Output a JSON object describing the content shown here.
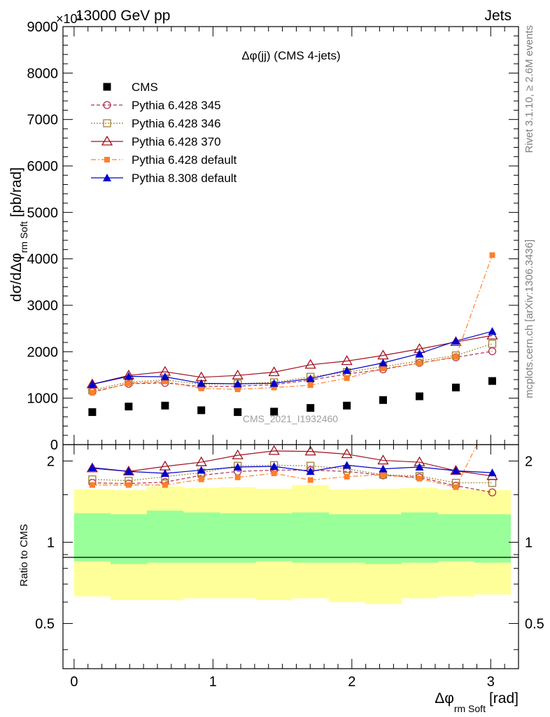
{
  "header": {
    "left": "13000 GeV pp",
    "right": "Jets",
    "exponent": "×10³"
  },
  "side_labels": {
    "rivet": "Rivet 3.1.10, ≥ 2.6M events",
    "mcplots": "mcplots.cern.ch [arXiv:1306.3436]"
  },
  "watermark": "CMS_2021_I1932460",
  "chart_data": {
    "type": "scatter",
    "title": "Δφ(jj) (CMS 4-jets)",
    "ylabel": "dσ/dΔφrm Soft [pb/rad]",
    "ylabel_main": "dσ/dΔφ",
    "ylabel_sub": "rm Soft",
    "ylabel_unit": "[pb/rad]",
    "xlabel": "Δφrm Soft [rad]",
    "xlabel_main": "Δφ",
    "xlabel_sub": "rm Soft",
    "xlabel_unit": "[rad]",
    "xlim": [
      -0.08,
      3.2
    ],
    "ylim": [
      0,
      9000
    ],
    "y_ticks": [
      0,
      1000,
      2000,
      3000,
      4000,
      5000,
      6000,
      7000,
      8000,
      9000
    ],
    "y_tick_labels": [
      "0",
      "1000",
      "2000",
      "3000",
      "4000",
      "5000",
      "6000",
      "7000",
      "8000",
      "9000"
    ],
    "x_ticks": [
      0,
      1,
      2,
      3
    ],
    "x_tick_labels": [
      "0",
      "1",
      "2",
      "3"
    ],
    "legend_position": "top-left",
    "x": [
      0.131,
      0.393,
      0.655,
      0.916,
      1.178,
      1.44,
      1.702,
      1.964,
      2.225,
      2.487,
      2.749,
      3.011
    ],
    "bin_edges": [
      0.0,
      0.262,
      0.524,
      0.785,
      1.047,
      1.309,
      1.571,
      1.833,
      2.094,
      2.356,
      2.618,
      2.88,
      3.142
    ],
    "series": [
      {
        "name": "CMS",
        "color": "#000000",
        "marker": "square",
        "values": [
          700,
          820,
          840,
          740,
          700,
          710,
          790,
          840,
          960,
          1040,
          1230,
          1370
        ]
      },
      {
        "name": "Pythia 6.428 345",
        "color": "#b03050",
        "marker": "circle-open",
        "dash": "5,3",
        "values": [
          1140,
          1310,
          1330,
          1250,
          1260,
          1290,
          1390,
          1520,
          1620,
          1760,
          1880,
          2010
        ]
      },
      {
        "name": "Pythia 6.428 346",
        "color": "#a08030",
        "marker": "square-open",
        "dash": "2,2",
        "values": [
          1170,
          1350,
          1390,
          1300,
          1310,
          1340,
          1460,
          1560,
          1680,
          1800,
          1920,
          2170
        ]
      },
      {
        "name": "Pythia 6.428 370",
        "color": "#a01020",
        "marker": "triangle-open",
        "dash": "",
        "values": [
          1300,
          1490,
          1570,
          1450,
          1490,
          1560,
          1720,
          1800,
          1920,
          2060,
          2210,
          2350
        ]
      },
      {
        "name": "Pythia 6.428 default",
        "color": "#ff7f2a",
        "marker": "square-small",
        "dash": "7,3,2,3",
        "values": [
          1120,
          1320,
          1360,
          1210,
          1190,
          1230,
          1280,
          1430,
          1640,
          1750,
          1890,
          4080
        ]
      },
      {
        "name": "Pythia 8.308 default",
        "color": "#0000cc",
        "marker": "triangle",
        "dash": "",
        "values": [
          1300,
          1470,
          1460,
          1320,
          1310,
          1320,
          1420,
          1600,
          1760,
          1960,
          2230,
          2440
        ]
      }
    ],
    "ratio": {
      "ylabel": "Ratio to CMS",
      "ylim": [
        0.34,
        2.3
      ],
      "y_ticks": [
        0.5,
        1,
        2
      ],
      "y_tick_labels": [
        "0.5",
        "1",
        "2"
      ],
      "reference": 1,
      "band_inner": [
        [
          0.85,
          1.28
        ],
        [
          0.83,
          1.27
        ],
        [
          0.84,
          1.31
        ],
        [
          0.84,
          1.29
        ],
        [
          0.84,
          1.28
        ],
        [
          0.85,
          1.28
        ],
        [
          0.84,
          1.29
        ],
        [
          0.84,
          1.27
        ],
        [
          0.83,
          1.27
        ],
        [
          0.84,
          1.29
        ],
        [
          0.85,
          1.27
        ],
        [
          0.84,
          1.27
        ]
      ],
      "band_outer": [
        [
          0.63,
          1.57
        ],
        [
          0.61,
          1.56
        ],
        [
          0.61,
          1.61
        ],
        [
          0.62,
          1.59
        ],
        [
          0.62,
          1.6
        ],
        [
          0.61,
          1.58
        ],
        [
          0.62,
          1.63
        ],
        [
          0.6,
          1.57
        ],
        [
          0.59,
          1.58
        ],
        [
          0.62,
          1.59
        ],
        [
          0.63,
          1.57
        ],
        [
          0.64,
          1.56
        ]
      ],
      "series": [
        {
          "name": "Pythia 6.428 345",
          "values": [
            1.66,
            1.65,
            1.67,
            1.77,
            1.83,
            1.85,
            1.85,
            1.83,
            1.77,
            1.74,
            1.62,
            1.53
          ]
        },
        {
          "name": "Pythia 6.428 346",
          "values": [
            1.71,
            1.69,
            1.75,
            1.81,
            1.92,
            1.93,
            1.92,
            1.87,
            1.78,
            1.76,
            1.66,
            1.66
          ]
        },
        {
          "name": "Pythia 6.428 370",
          "values": [
            1.88,
            1.83,
            1.91,
            1.98,
            2.1,
            2.18,
            2.17,
            2.12,
            2.01,
            1.98,
            1.84,
            1.76
          ]
        },
        {
          "name": "Pythia 6.428 default",
          "values": [
            1.63,
            1.63,
            1.63,
            1.71,
            1.74,
            1.8,
            1.7,
            1.75,
            1.78,
            1.72,
            1.6,
            3.0
          ]
        },
        {
          "name": "Pythia 8.308 default",
          "values": [
            1.89,
            1.83,
            1.8,
            1.85,
            1.9,
            1.91,
            1.83,
            1.93,
            1.87,
            1.9,
            1.84,
            1.81
          ]
        }
      ]
    }
  }
}
